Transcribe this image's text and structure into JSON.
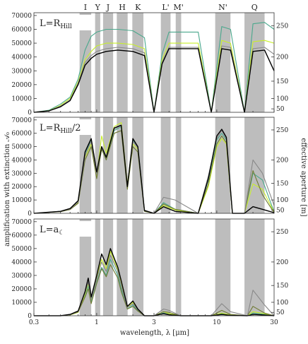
{
  "figure": {
    "ylabel_left": "amplification with extinction 𝒜₀",
    "ylabel_right": "effective aperture [m]",
    "xlabel": "wavelength, λ [μm]"
  },
  "bands": [
    {
      "name": "I",
      "lo": 0.72,
      "hi": 0.9
    },
    {
      "name": "Y",
      "lo": 0.97,
      "hi": 1.07
    },
    {
      "name": "J",
      "lo": 1.13,
      "hi": 1.37
    },
    {
      "name": "H",
      "lo": 1.47,
      "hi": 1.81
    },
    {
      "name": "K",
      "lo": 1.98,
      "hi": 2.45
    },
    {
      "name": "L'",
      "lo": 3.42,
      "hi": 4.12
    },
    {
      "name": "M'",
      "lo": 4.55,
      "hi": 5.05
    },
    {
      "name": "N'",
      "lo": 9.7,
      "hi": 13.0
    },
    {
      "name": "Q",
      "lo": 17.0,
      "hi": 25.0
    }
  ],
  "chart_data": [
    {
      "type": "line",
      "label": "L=R_Hill",
      "xscale": "log",
      "xlim": [
        0.3,
        30
      ],
      "ylim": [
        0,
        72000
      ],
      "right_ylim": [
        0,
        72000
      ],
      "xticks": [
        0.3,
        1,
        3,
        10,
        30
      ],
      "xtick_labels": [
        "0.3",
        "1",
        "3",
        "10",
        "30"
      ],
      "yticks": [
        0,
        10000,
        20000,
        30000,
        40000,
        50000,
        60000,
        70000
      ],
      "right_ticks": [
        50,
        100,
        150,
        200,
        250
      ],
      "grid": false,
      "series": [
        {
          "color": "#4aa88c",
          "x": [
            0.3,
            0.4,
            0.5,
            0.6,
            0.7,
            0.8,
            0.9,
            1.0,
            1.2,
            1.5,
            2.0,
            2.5,
            3.0,
            3.5,
            4.0,
            5.0,
            7.0,
            9.0,
            11.0,
            13.0,
            17.0,
            20.0,
            25.0,
            30.0
          ],
          "y": [
            0,
            1500,
            6000,
            11000,
            24000,
            45000,
            55000,
            58000,
            60000,
            60000,
            59000,
            54000,
            0,
            42000,
            58000,
            58000,
            58000,
            0,
            62000,
            60000,
            0,
            64000,
            65000,
            60000
          ]
        },
        {
          "color": "#c8ef2a",
          "x": [
            0.3,
            0.4,
            0.5,
            0.6,
            0.7,
            0.8,
            0.9,
            1.0,
            1.2,
            1.5,
            2.0,
            2.5,
            3.0,
            3.5,
            4.0,
            5.0,
            7.0,
            9.0,
            11.0,
            13.0,
            17.0,
            20.0,
            25.0,
            30.0
          ],
          "y": [
            0,
            1200,
            5000,
            10000,
            22000,
            38000,
            44000,
            48000,
            50000,
            50000,
            49000,
            46000,
            0,
            38000,
            50000,
            50000,
            50000,
            0,
            52000,
            50000,
            0,
            51000,
            52000,
            50000
          ]
        },
        {
          "color": "#888888",
          "x": [
            0.3,
            0.4,
            0.5,
            0.6,
            0.7,
            0.8,
            0.9,
            1.0,
            1.2,
            1.5,
            2.0,
            2.5,
            3.0,
            3.5,
            4.0,
            5.0,
            7.0,
            9.0,
            11.0,
            13.0,
            17.0,
            20.0,
            25.0,
            30.0
          ],
          "y": [
            0,
            1100,
            4500,
            9000,
            21000,
            36000,
            41000,
            44000,
            46000,
            47000,
            46000,
            43000,
            0,
            36000,
            47000,
            47000,
            47000,
            0,
            48000,
            47000,
            0,
            46000,
            47000,
            42000
          ]
        },
        {
          "color": "#000000",
          "x": [
            0.3,
            0.4,
            0.5,
            0.6,
            0.7,
            0.8,
            0.9,
            1.0,
            1.2,
            1.5,
            2.0,
            2.5,
            3.0,
            3.5,
            4.0,
            5.0,
            7.0,
            9.0,
            11.0,
            13.0,
            17.0,
            20.0,
            25.0,
            30.0
          ],
          "y": [
            0,
            1000,
            4000,
            8500,
            20000,
            34000,
            39000,
            42000,
            44000,
            45000,
            44000,
            41000,
            0,
            35000,
            46000,
            46000,
            46000,
            0,
            46000,
            45000,
            0,
            44000,
            45000,
            30000
          ]
        }
      ]
    },
    {
      "type": "line",
      "label": "L=R_Hill/2",
      "xscale": "log",
      "xlim": [
        0.3,
        30
      ],
      "ylim": [
        0,
        72000
      ],
      "right_ylim": [
        0,
        72000
      ],
      "xticks": [
        0.3,
        1,
        3,
        10,
        30
      ],
      "xtick_labels": [
        "0.3",
        "1",
        "3",
        "10",
        "30"
      ],
      "yticks": [
        0,
        10000,
        20000,
        30000,
        40000,
        50000,
        60000,
        70000
      ],
      "right_ticks": [
        50,
        100,
        150,
        200,
        250
      ],
      "grid": false,
      "series": [
        {
          "color": "#4aa88c",
          "x": [
            0.3,
            0.5,
            0.6,
            0.7,
            0.8,
            0.9,
            1.0,
            1.1,
            1.2,
            1.4,
            1.6,
            1.8,
            2.0,
            2.2,
            2.5,
            3.0,
            3.6,
            4.5,
            7.0,
            8.5,
            10.0,
            11.0,
            12.0,
            13.5,
            17.0,
            20.0,
            24.0,
            30.0
          ],
          "y": [
            0,
            1500,
            3500,
            9000,
            45000,
            55000,
            30000,
            50000,
            40000,
            62000,
            65000,
            20000,
            55000,
            50000,
            2000,
            0,
            8000,
            3000,
            0,
            25000,
            55000,
            60000,
            55000,
            0,
            0,
            30000,
            25000,
            1000
          ]
        },
        {
          "color": "#c8ef2a",
          "x": [
            0.3,
            0.5,
            0.6,
            0.7,
            0.8,
            0.9,
            1.0,
            1.1,
            1.2,
            1.4,
            1.6,
            1.8,
            2.0,
            2.2,
            2.5,
            3.0,
            3.6,
            4.5,
            7.0,
            8.5,
            10.0,
            11.0,
            12.0,
            13.5,
            17.0,
            20.0,
            24.0,
            30.0
          ],
          "y": [
            0,
            1300,
            3000,
            8000,
            42000,
            52000,
            28000,
            58000,
            45000,
            65000,
            68000,
            22000,
            52000,
            48000,
            1800,
            0,
            6000,
            2500,
            0,
            20000,
            50000,
            56000,
            52000,
            0,
            0,
            22000,
            18000,
            800
          ]
        },
        {
          "color": "#6f7a33",
          "x": [
            0.3,
            0.5,
            0.6,
            0.7,
            0.8,
            0.9,
            1.0,
            1.1,
            1.2,
            1.4,
            1.6,
            1.8,
            2.0,
            2.2,
            2.5,
            3.0,
            3.6,
            4.5,
            7.0,
            8.5,
            10.0,
            11.0,
            12.0,
            13.5,
            17.0,
            20.0,
            24.0,
            30.0
          ],
          "y": [
            0,
            1200,
            2800,
            7500,
            40000,
            50000,
            26000,
            48000,
            40000,
            60000,
            62000,
            18000,
            50000,
            46000,
            1500,
            0,
            7000,
            3000,
            0,
            22000,
            52000,
            58000,
            53000,
            0,
            0,
            32000,
            14000,
            500
          ]
        },
        {
          "color": "#888888",
          "x": [
            0.3,
            0.5,
            0.6,
            0.7,
            0.8,
            0.9,
            1.0,
            1.1,
            1.2,
            1.4,
            1.6,
            1.8,
            2.0,
            2.2,
            2.5,
            3.0,
            3.6,
            4.5,
            7.0,
            8.5,
            10.0,
            11.0,
            12.0,
            13.5,
            17.0,
            20.0,
            24.0,
            30.0
          ],
          "y": [
            0,
            1400,
            3200,
            8500,
            43000,
            54000,
            29000,
            50000,
            42000,
            63000,
            66000,
            21000,
            54000,
            49000,
            2500,
            0,
            12000,
            10000,
            0,
            28000,
            56000,
            62000,
            56000,
            0,
            0,
            40000,
            30000,
            6000
          ]
        },
        {
          "color": "#000000",
          "x": [
            0.3,
            0.5,
            0.6,
            0.7,
            0.8,
            0.9,
            1.0,
            1.1,
            1.2,
            1.4,
            1.6,
            1.8,
            2.0,
            2.2,
            2.5,
            3.0,
            3.6,
            4.5,
            7.0,
            8.5,
            10.0,
            11.0,
            12.0,
            13.5,
            17.0,
            20.0,
            24.0,
            30.0
          ],
          "y": [
            0,
            1500,
            3600,
            9500,
            46000,
            56000,
            31000,
            50000,
            42000,
            64000,
            66000,
            20000,
            56000,
            50000,
            2000,
            0,
            5000,
            1500,
            0,
            26000,
            58000,
            63000,
            57000,
            0,
            0,
            5000,
            3000,
            500
          ]
        }
      ]
    },
    {
      "type": "line",
      "label": "L=a_☾",
      "xscale": "log",
      "xlim": [
        0.3,
        30
      ],
      "ylim": [
        0,
        72000
      ],
      "right_ylim": [
        0,
        72000
      ],
      "xticks": [
        0.3,
        1,
        3,
        10,
        30
      ],
      "xtick_labels": [
        "0.3",
        "1",
        "3",
        "10",
        "30"
      ],
      "yticks": [
        0,
        10000,
        20000,
        30000,
        40000,
        50000,
        60000,
        70000
      ],
      "right_ticks": [
        50,
        100,
        150,
        200,
        250
      ],
      "grid": false,
      "series": [
        {
          "color": "#4aa88c",
          "x": [
            0.3,
            0.5,
            0.6,
            0.7,
            0.8,
            0.85,
            0.9,
            1.0,
            1.1,
            1.2,
            1.3,
            1.5,
            1.6,
            1.8,
            2.0,
            2.2,
            2.5,
            3.0,
            3.6,
            4.0,
            5.0,
            9.0,
            11.0,
            13.0,
            18.0,
            20.0,
            25.0,
            30.0
          ],
          "y": [
            0,
            0,
            800,
            3000,
            15000,
            22000,
            10000,
            25000,
            36000,
            30000,
            42000,
            30000,
            20000,
            5000,
            8000,
            4000,
            0,
            0,
            2000,
            1000,
            0,
            0,
            1500,
            500,
            0,
            2000,
            1000,
            0
          ]
        },
        {
          "color": "#c8ef2a",
          "x": [
            0.3,
            0.5,
            0.6,
            0.7,
            0.8,
            0.85,
            0.9,
            1.0,
            1.1,
            1.2,
            1.3,
            1.5,
            1.6,
            1.8,
            2.0,
            2.2,
            2.5,
            3.0,
            3.6,
            4.0,
            5.0,
            9.0,
            11.0,
            13.0,
            18.0,
            20.0,
            25.0,
            30.0
          ],
          "y": [
            0,
            0,
            600,
            2500,
            16000,
            24000,
            12000,
            28000,
            42000,
            35000,
            48000,
            34000,
            25000,
            6000,
            10000,
            5000,
            0,
            0,
            3000,
            1500,
            0,
            0,
            2000,
            500,
            0,
            3000,
            1500,
            0
          ]
        },
        {
          "color": "#6f7a33",
          "x": [
            0.3,
            0.5,
            0.6,
            0.7,
            0.8,
            0.85,
            0.9,
            1.0,
            1.1,
            1.2,
            1.3,
            1.5,
            1.6,
            1.8,
            2.0,
            2.2,
            2.5,
            3.0,
            3.6,
            4.0,
            5.0,
            9.0,
            11.0,
            13.0,
            18.0,
            20.0,
            25.0,
            30.0
          ],
          "y": [
            0,
            0,
            700,
            2800,
            14000,
            20000,
            9000,
            24000,
            35000,
            29000,
            38000,
            28000,
            18000,
            5000,
            7000,
            3500,
            0,
            0,
            3000,
            2500,
            0,
            0,
            4000,
            1000,
            0,
            7000,
            2000,
            0
          ]
        },
        {
          "color": "#888888",
          "x": [
            0.3,
            0.5,
            0.6,
            0.7,
            0.8,
            0.85,
            0.9,
            1.0,
            1.1,
            1.2,
            1.3,
            1.5,
            1.6,
            1.8,
            2.0,
            2.2,
            2.5,
            3.0,
            3.6,
            4.0,
            5.0,
            9.0,
            11.0,
            13.0,
            18.0,
            20.0,
            25.0,
            30.0
          ],
          "y": [
            0,
            0,
            800,
            3200,
            17000,
            25000,
            12000,
            27000,
            40000,
            33000,
            45000,
            33000,
            22000,
            6000,
            9000,
            4500,
            0,
            0,
            5000,
            4000,
            0,
            0,
            9000,
            3000,
            0,
            19000,
            8000,
            0
          ]
        },
        {
          "color": "#000000",
          "x": [
            0.3,
            0.5,
            0.6,
            0.7,
            0.8,
            0.85,
            0.9,
            1.0,
            1.1,
            1.2,
            1.3,
            1.5,
            1.6,
            1.8,
            2.0,
            2.2,
            2.5,
            3.0,
            3.6,
            4.0,
            5.0,
            9.0,
            11.0,
            13.0,
            18.0,
            20.0,
            25.0,
            30.0
          ],
          "y": [
            0,
            0,
            1000,
            3500,
            18000,
            28000,
            14000,
            30000,
            46000,
            38000,
            50000,
            36000,
            26000,
            7000,
            11000,
            5000,
            0,
            0,
            1500,
            800,
            0,
            0,
            1000,
            300,
            0,
            1000,
            500,
            0
          ]
        }
      ]
    }
  ]
}
